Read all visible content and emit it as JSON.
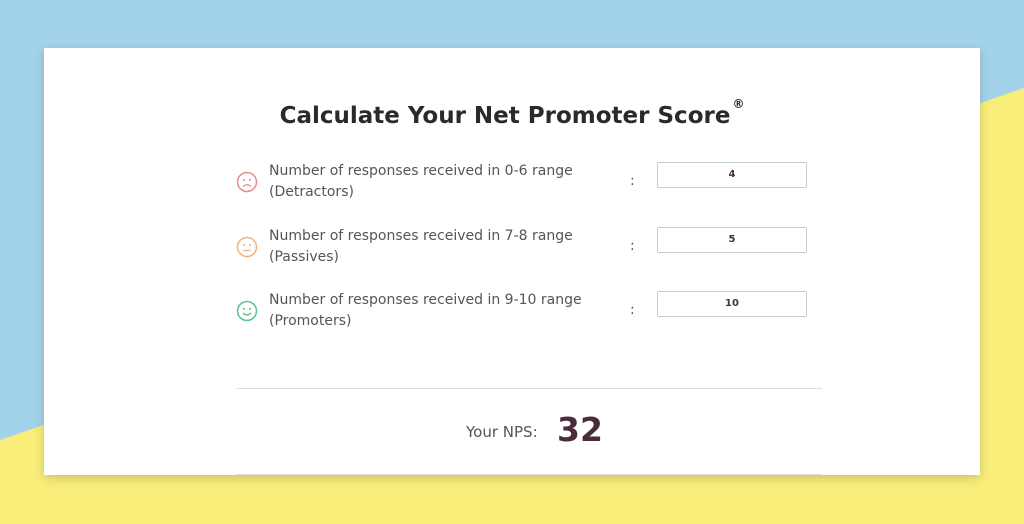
{
  "header": {
    "title": "Calculate Your Net Promoter Score",
    "mark": "®"
  },
  "rows": [
    {
      "label_line1": "Number of responses received in 0-6 range",
      "label_line2": "(Detractors)",
      "separator": ":",
      "input": 4
    },
    {
      "label_line1": "Number of responses received in 7-8 range",
      "label_line2": "(Passives)",
      "separator": ":",
      "input": 5
    },
    {
      "label_line1": "Number of responses received in 9-10 range",
      "label_line2": "(Promoters)",
      "separator": ":",
      "input": 10
    }
  ],
  "result": {
    "label": "Your NPS:",
    "value": 32
  }
}
